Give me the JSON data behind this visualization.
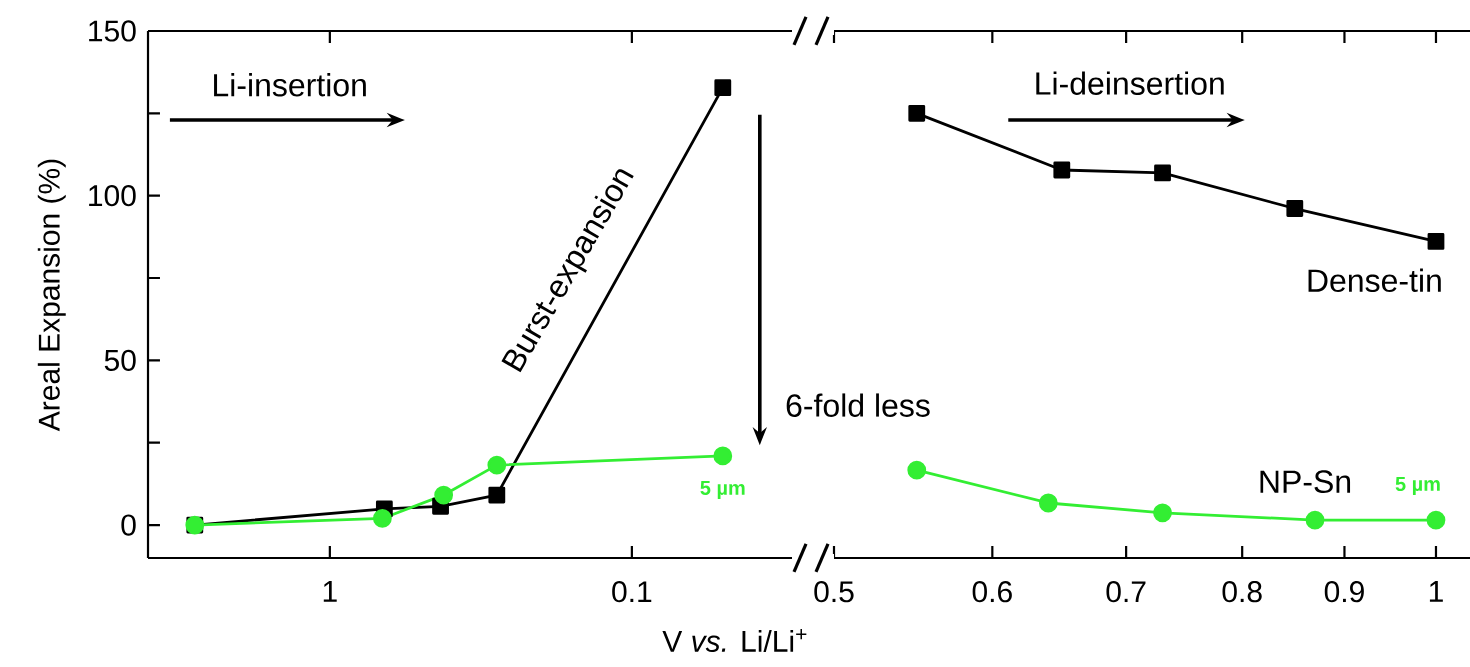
{
  "chart_data": [
    {
      "type": "line",
      "xlabel": "V *vs.* Li/Li$^{+}$",
      "ylabel": "Areal Expansion (%)",
      "log": "x",
      "xlim": [
        4.0,
        0.0295
      ],
      "xticks": [
        1,
        0.1
      ],
      "ylim": [
        -10,
        150
      ],
      "yticks": [
        0,
        {
          "value": 25,
          "label": null
        },
        50,
        {
          "value": 75,
          "label": null
        },
        100,
        {
          "value": 125,
          "label": null
        },
        150
      ],
      "annotations": [
        "Li-insertion",
        "Burst-expansion",
        "6-fold less",
        {
          "text": "5 µm",
          "x": 0.05,
          "y": 21
        }
      ],
      "series": [
        {
          "color": "#000000",
          "marker": "square",
          "x": [
            2.8,
            0.66,
            0.43,
            0.28,
            0.05
          ],
          "values": [
            0,
            4.9,
            5.7,
            9.1,
            132.8
          ]
        },
        {
          "color": "#33ee33",
          "marker": "circle",
          "x": [
            2.8,
            0.67,
            0.42,
            0.28,
            0.05
          ],
          "values": [
            0,
            2.0,
            9.1,
            18.2,
            21
          ]
        }
      ]
    },
    {
      "type": "line",
      "log": "x",
      "tick_labels": "x",
      "xlim": [
        0.5,
        1.04
      ],
      "xticks": [
        0.5,
        0.6,
        0.7,
        0.8,
        0.9,
        1
      ],
      "ylim": [
        -10,
        150
      ],
      "annotations": [
        "Li-deinsertion",
        {
          "text": "5 µm",
          "x": 1.0,
          "y": 1.5
        }
      ],
      "series": [
        {
          "name": "Dense-tin",
          "color": "#000000",
          "marker": "square",
          "x": [
            0.55,
            0.65,
            0.73,
            0.85,
            1.0
          ],
          "values": [
            125,
            107.8,
            106.9,
            96.1,
            86.1
          ]
        },
        {
          "name": "NP-Sn",
          "color": "#33ee33",
          "marker": "circle",
          "x": [
            0.55,
            0.64,
            0.73,
            0.87,
            1.0
          ],
          "values": [
            16.7,
            6.7,
            3.7,
            1.5,
            1.5
          ]
        }
      ]
    }
  ]
}
